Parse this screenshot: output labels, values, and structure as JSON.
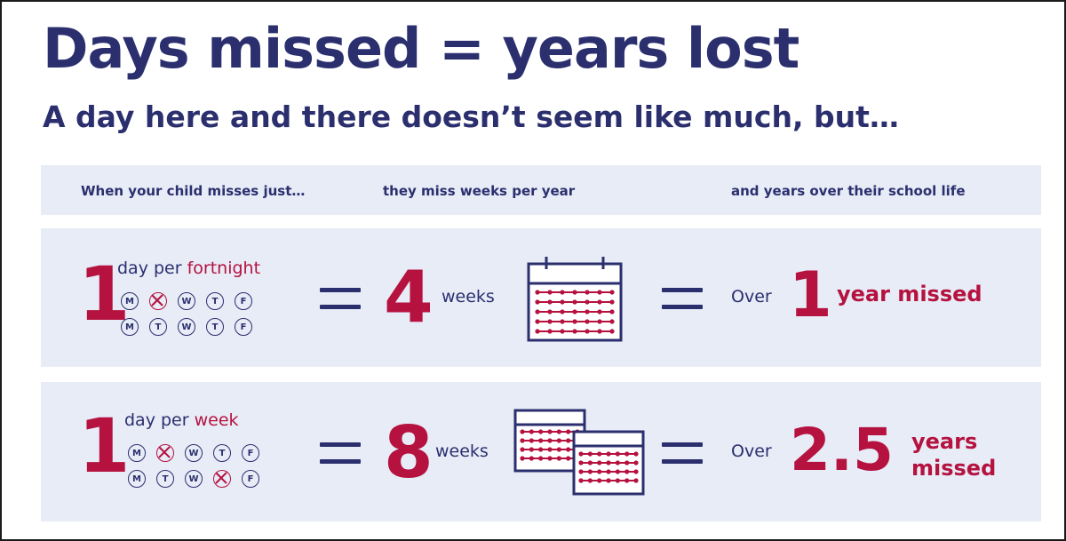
{
  "title": "Days missed = years lost",
  "subtitle": "A day here and there doesn’t seem like much, but…",
  "header": {
    "col1": "When your child misses just…",
    "col2": "they miss weeks per year",
    "col3": "and years over their school life"
  },
  "colors": {
    "navy": "#2b2f6e",
    "crimson": "#b5123f",
    "band": "#e7ecf7"
  },
  "rows": [
    {
      "number": "1",
      "phrase_prefix": "day per ",
      "phrase_accent": "fortnight",
      "day_rows": [
        [
          {
            "letter": "M",
            "missed": false
          },
          {
            "letter": "",
            "missed": true
          },
          {
            "letter": "W",
            "missed": false
          },
          {
            "letter": "T",
            "missed": false
          },
          {
            "letter": "F",
            "missed": false
          }
        ],
        [
          {
            "letter": "M",
            "missed": false
          },
          {
            "letter": "T",
            "missed": false
          },
          {
            "letter": "W",
            "missed": false
          },
          {
            "letter": "T",
            "missed": false
          },
          {
            "letter": "F",
            "missed": false
          }
        ]
      ],
      "weeks_number": "4",
      "weeks_label": "weeks",
      "calendar_icon": "calendar-icon",
      "over_label": "Over",
      "years_number": "1",
      "years_label": "year missed"
    },
    {
      "number": "1",
      "phrase_prefix": "day per ",
      "phrase_accent": "week",
      "day_rows": [
        [
          {
            "letter": "M",
            "missed": false
          },
          {
            "letter": "",
            "missed": true
          },
          {
            "letter": "W",
            "missed": false
          },
          {
            "letter": "T",
            "missed": false
          },
          {
            "letter": "F",
            "missed": false
          }
        ],
        [
          {
            "letter": "M",
            "missed": false
          },
          {
            "letter": "T",
            "missed": false
          },
          {
            "letter": "W",
            "missed": false
          },
          {
            "letter": "",
            "missed": true
          },
          {
            "letter": "F",
            "missed": false
          }
        ]
      ],
      "weeks_number": "8",
      "weeks_label": "weeks",
      "calendar_icon": "two-calendars-icon",
      "over_label": "Over",
      "years_number": "2.5",
      "years_label_line1": "years",
      "years_label_line2": "missed"
    }
  ]
}
